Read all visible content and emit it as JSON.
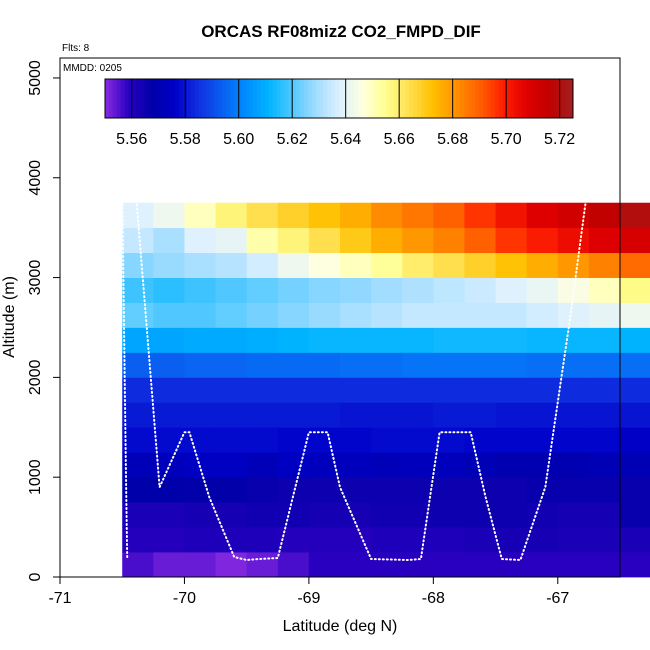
{
  "chart_data": {
    "type": "heatmap",
    "title": "ORCAS RF08miz2 CO2_FMPD_DIF",
    "xlabel": "Latitude (deg N)",
    "ylabel": "Altitude (m)",
    "flights_note": "Flts: 8",
    "date_note": "MMDD: 0205",
    "xlim": [
      -71,
      -66.5
    ],
    "ylim": [
      0,
      5200
    ],
    "x_ticks": [
      -71,
      -70,
      -69,
      -68,
      -67
    ],
    "x_tick_labels": [
      "-71",
      "-70",
      "-69",
      "-68",
      "-67"
    ],
    "y_ticks": [
      0,
      1000,
      2000,
      3000,
      4000,
      5000
    ],
    "y_tick_labels": [
      "0",
      "1000",
      "2000",
      "3000",
      "4000",
      "5000"
    ],
    "colorbar": {
      "min": 5.55,
      "max": 5.725,
      "ticks": [
        5.56,
        5.58,
        5.6,
        5.62,
        5.64,
        5.66,
        5.68,
        5.7,
        5.72
      ],
      "tick_labels": [
        "5.56",
        "5.58",
        "5.60",
        "5.62",
        "5.64",
        "5.66",
        "5.68",
        "5.70",
        "5.72"
      ],
      "colors": [
        "#8a2be2",
        "#2a00c0",
        "#0000a8",
        "#0000c8",
        "#1030e0",
        "#0a5ef0",
        "#008cff",
        "#00b4ff",
        "#50c8ff",
        "#a0dcff",
        "#dcf0ff",
        "#ffffe0",
        "#ffff90",
        "#ffe050",
        "#ffc000",
        "#ff9000",
        "#ff6000",
        "#ff2000",
        "#e00000",
        "#c00000",
        "#a02020"
      ]
    },
    "x_start": -70.5,
    "x_step": 0.25,
    "y_step": 250,
    "cell_values": [
      [
        5.556,
        5.553,
        5.553,
        5.551,
        5.553,
        5.556,
        5.559,
        5.559,
        5.559,
        5.559,
        5.559,
        5.559,
        5.559,
        5.559,
        5.559,
        5.559,
        5.559,
        null,
        null,
        null
      ],
      [
        5.56,
        5.56,
        5.561,
        5.561,
        5.561,
        5.56,
        5.56,
        5.56,
        5.561,
        5.561,
        5.561,
        5.562,
        5.563,
        5.563,
        5.562,
        5.562,
        5.562,
        null,
        null,
        null
      ],
      [
        5.562,
        5.562,
        5.563,
        5.563,
        5.564,
        5.564,
        5.563,
        5.563,
        5.564,
        5.564,
        5.565,
        5.565,
        5.565,
        5.564,
        5.563,
        5.563,
        5.566,
        5.566,
        null,
        null
      ],
      [
        5.568,
        5.568,
        5.567,
        5.567,
        5.566,
        5.565,
        5.565,
        5.565,
        5.565,
        5.565,
        5.565,
        5.565,
        5.565,
        5.566,
        5.566,
        5.566,
        5.566,
        5.568,
        5.569,
        null
      ],
      [
        5.572,
        5.573,
        5.575,
        5.575,
        5.572,
        5.575,
        5.573,
        5.573,
        5.572,
        5.573,
        5.573,
        5.571,
        5.57,
        5.57,
        5.57,
        5.571,
        5.571,
        5.57,
        5.57,
        null
      ],
      [
        5.578,
        5.578,
        5.578,
        5.578,
        5.578,
        5.577,
        5.577,
        5.577,
        5.578,
        5.578,
        5.578,
        5.577,
        5.577,
        5.577,
        5.577,
        5.577,
        5.576,
        5.576,
        5.576,
        null
      ],
      [
        5.581,
        5.581,
        5.581,
        5.581,
        5.581,
        5.581,
        5.581,
        5.58,
        5.58,
        5.58,
        5.581,
        5.581,
        5.58,
        5.58,
        5.58,
        5.58,
        5.58,
        5.58,
        5.58,
        null
      ],
      [
        5.584,
        5.584,
        5.584,
        5.584,
        5.584,
        5.584,
        5.584,
        5.584,
        5.584,
        5.584,
        5.584,
        5.584,
        5.584,
        5.584,
        5.584,
        5.584,
        5.584,
        5.584,
        5.584,
        null
      ],
      [
        5.594,
        5.594,
        5.595,
        5.595,
        5.596,
        5.596,
        5.596,
        5.597,
        5.597,
        5.598,
        5.598,
        5.598,
        5.598,
        5.597,
        5.597,
        5.597,
        5.597,
        5.598,
        5.603,
        null
      ],
      [
        5.608,
        5.608,
        5.609,
        5.609,
        5.61,
        5.611,
        5.612,
        5.612,
        5.612,
        5.612,
        5.613,
        5.613,
        5.613,
        5.612,
        5.612,
        5.612,
        5.611,
        5.61,
        5.61,
        5.612
      ],
      [
        5.622,
        5.62,
        5.62,
        5.622,
        5.624,
        5.626,
        5.628,
        5.63,
        5.632,
        5.634,
        5.634,
        5.634,
        5.634,
        5.636,
        5.638,
        5.64,
        5.642,
        5.644,
        5.648,
        5.648
      ],
      [
        5.618,
        5.616,
        5.618,
        5.62,
        5.622,
        5.624,
        5.626,
        5.627,
        5.629,
        5.631,
        5.633,
        5.635,
        5.638,
        5.641,
        5.645,
        5.65,
        5.656,
        5.662,
        5.668,
        5.67
      ],
      [
        5.626,
        5.628,
        5.63,
        5.632,
        5.636,
        5.642,
        5.646,
        5.65,
        5.654,
        5.66,
        5.664,
        5.668,
        5.672,
        5.676,
        5.68,
        5.684,
        5.688,
        5.694,
        5.7,
        5.702
      ],
      [
        5.634,
        5.63,
        5.638,
        5.64,
        5.652,
        5.658,
        5.664,
        5.67,
        5.676,
        5.68,
        5.684,
        5.69,
        5.696,
        5.7,
        5.704,
        5.708,
        5.71,
        5.712,
        null,
        null
      ],
      [
        5.638,
        5.642,
        5.65,
        5.658,
        5.664,
        5.668,
        5.672,
        5.676,
        5.682,
        5.686,
        5.69,
        5.696,
        5.702,
        5.708,
        5.712,
        5.716,
        5.72,
        5.724,
        5.726,
        5.726
      ]
    ],
    "flight_track": {
      "lat": [
        -70.46,
        -70.47,
        -70.5,
        -70.4,
        -70.2,
        -70.0,
        -69.96,
        -69.8,
        -69.6,
        -69.5,
        -69.4,
        -69.25,
        -69.0,
        -68.85,
        -68.75,
        -68.5,
        -68.2,
        -68.1,
        -67.95,
        -67.7,
        -67.58,
        -67.45,
        -67.3,
        -67.1,
        -66.9,
        -66.75
      ],
      "alt": [
        200,
        1000,
        3900,
        4000,
        900,
        1450,
        1450,
        800,
        200,
        170,
        180,
        190,
        1450,
        1450,
        900,
        180,
        170,
        180,
        1450,
        1450,
        800,
        180,
        170,
        900,
        2600,
        4000
      ]
    }
  }
}
